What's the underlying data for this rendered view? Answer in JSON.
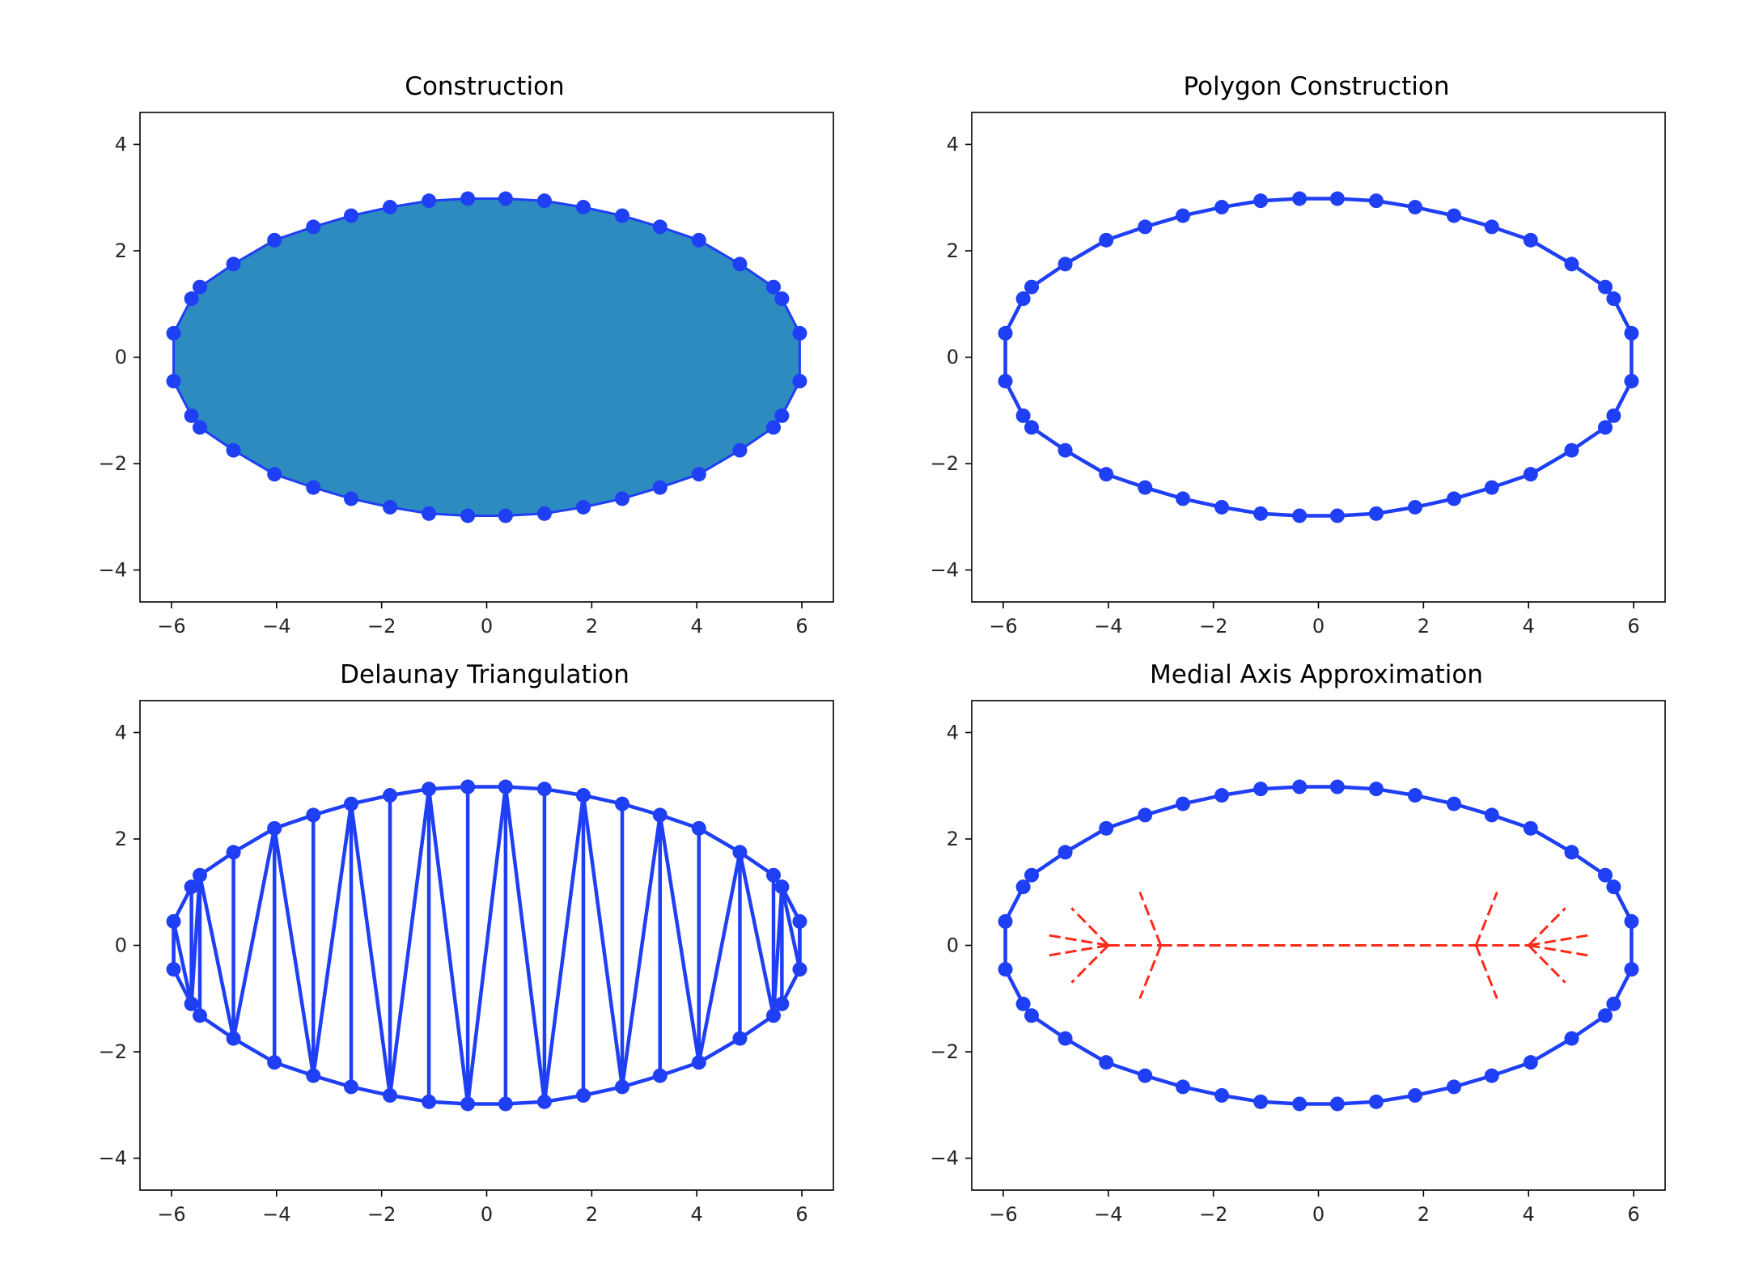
{
  "colors": {
    "outline": "#1f3ff5",
    "fill": "#2e8bc0",
    "medial": "#ff2a1a",
    "axis": "#000000",
    "text": "#262626"
  },
  "chart_data": [
    {
      "type": "polygon-fill",
      "title": "Construction",
      "xlim": [
        -6.6,
        6.6
      ],
      "ylim": [
        -4.6,
        4.6
      ],
      "xticks": [
        -6,
        -4,
        -2,
        0,
        2,
        4,
        6
      ],
      "yticks": [
        -4,
        -2,
        0,
        2,
        4
      ],
      "xtick_labels": [
        "−6",
        "−4",
        "−2",
        "0",
        "2",
        "4",
        "6"
      ],
      "ytick_labels": [
        "−4",
        "−2",
        "0",
        "2",
        "4"
      ],
      "shape": "ellipse boundary points, a=6, b=3, vertices at (±5.96, ±0.45) ... (±0.36, ±2.98)",
      "filled": true,
      "markers": true
    },
    {
      "type": "polygon",
      "title": "Polygon Construction",
      "xlim": [
        -6.6,
        6.6
      ],
      "ylim": [
        -4.6,
        4.6
      ],
      "xticks": [
        -6,
        -4,
        -2,
        0,
        2,
        4,
        6
      ],
      "yticks": [
        -4,
        -2,
        0,
        2,
        4
      ],
      "xtick_labels": [
        "−6",
        "−4",
        "−2",
        "0",
        "2",
        "4",
        "6"
      ],
      "ytick_labels": [
        "−4",
        "−2",
        "0",
        "2",
        "4"
      ],
      "filled": false,
      "markers": true
    },
    {
      "type": "triangulation",
      "title": "Delaunay Triangulation",
      "xlim": [
        -6.6,
        6.6
      ],
      "ylim": [
        -4.6,
        4.6
      ],
      "xticks": [
        -6,
        -4,
        -2,
        0,
        2,
        4,
        6
      ],
      "yticks": [
        -4,
        -2,
        0,
        2,
        4
      ],
      "xtick_labels": [
        "−6",
        "−4",
        "−2",
        "0",
        "2",
        "4",
        "6"
      ],
      "ytick_labels": [
        "−4",
        "−2",
        "0",
        "2",
        "4"
      ],
      "filled": false,
      "markers": true
    },
    {
      "type": "polygon-with-medial-axis",
      "title": "Medial Axis Approximation",
      "xlim": [
        -6.6,
        6.6
      ],
      "ylim": [
        -4.6,
        4.6
      ],
      "xticks": [
        -6,
        -4,
        -2,
        0,
        2,
        4,
        6
      ],
      "yticks": [
        -4,
        -2,
        0,
        2,
        4
      ],
      "xtick_labels": [
        "−6",
        "−4",
        "−2",
        "0",
        "2",
        "4",
        "6"
      ],
      "ytick_labels": [
        "−4",
        "−2",
        "0",
        "2",
        "4"
      ],
      "filled": false,
      "markers": true,
      "medial_axis_segments": [
        [
          [
            -3.0,
            0.0
          ],
          [
            3.0,
            0.0
          ]
        ],
        [
          [
            -4.0,
            0.0
          ],
          [
            -3.0,
            0.0
          ]
        ],
        [
          [
            3.0,
            0.0
          ],
          [
            4.0,
            0.0
          ]
        ],
        [
          [
            -4.0,
            0.0
          ],
          [
            -4.7,
            0.7
          ]
        ],
        [
          [
            -4.0,
            0.0
          ],
          [
            -4.7,
            -0.7
          ]
        ],
        [
          [
            -4.0,
            0.0
          ],
          [
            -5.2,
            0.2
          ]
        ],
        [
          [
            -4.0,
            0.0
          ],
          [
            -5.2,
            -0.2
          ]
        ],
        [
          [
            -3.0,
            0.0
          ],
          [
            -3.4,
            1.0
          ]
        ],
        [
          [
            -3.0,
            0.0
          ],
          [
            -3.4,
            -1.0
          ]
        ],
        [
          [
            3.0,
            0.0
          ],
          [
            3.4,
            1.0
          ]
        ],
        [
          [
            3.0,
            0.0
          ],
          [
            3.4,
            -1.0
          ]
        ],
        [
          [
            4.0,
            0.0
          ],
          [
            4.7,
            0.7
          ]
        ],
        [
          [
            4.0,
            0.0
          ],
          [
            4.7,
            -0.7
          ]
        ],
        [
          [
            4.0,
            0.0
          ],
          [
            5.2,
            0.2
          ]
        ],
        [
          [
            4.0,
            0.0
          ],
          [
            5.2,
            -0.2
          ]
        ]
      ]
    }
  ]
}
